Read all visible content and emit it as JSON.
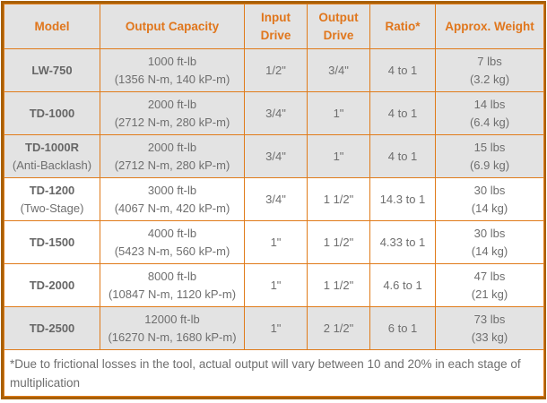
{
  "colors": {
    "accent_orange": "#e07b1a",
    "frame_orange": "#a86006",
    "header_text_orange": "#e0761c",
    "shaded_row_bg": "#e3e3e3",
    "body_text_gray": "#6e6e6e",
    "row_bg_white": "#ffffff"
  },
  "table": {
    "headers": [
      "Model",
      "Output Capacity",
      "Input Drive",
      "Output Drive",
      "Ratio*",
      "Approx. Weight"
    ],
    "rows": [
      {
        "model": [
          "LW-750"
        ],
        "capacity": [
          "1000 ft-lb",
          "(1356 N-m, 140 kP-m)"
        ],
        "input_drive": "1/2\"",
        "output_drive": "3/4\"",
        "ratio": "4 to 1",
        "weight": [
          "7 lbs",
          "(3.2 kg)"
        ],
        "shaded": true
      },
      {
        "model": [
          "TD-1000"
        ],
        "capacity": [
          "2000 ft-lb",
          "(2712 N-m, 280 kP-m)"
        ],
        "input_drive": "3/4\"",
        "output_drive": "1\"",
        "ratio": "4 to 1",
        "weight": [
          "14 lbs",
          "(6.4 kg)"
        ],
        "shaded": true
      },
      {
        "model": [
          "TD-1000R",
          "(Anti-Backlash)"
        ],
        "capacity": [
          "2000 ft-lb",
          "(2712 N-m, 280 kP-m)"
        ],
        "input_drive": "3/4\"",
        "output_drive": "1\"",
        "ratio": "4 to 1",
        "weight": [
          "15 lbs",
          "(6.9 kg)"
        ],
        "shaded": true
      },
      {
        "model": [
          "TD-1200",
          "(Two-Stage)"
        ],
        "capacity": [
          "3000 ft-lb",
          "(4067 N-m, 420 kP-m)"
        ],
        "input_drive": "3/4\"",
        "output_drive": "1 1/2\"",
        "ratio": "14.3 to 1",
        "weight": [
          "30 lbs",
          "(14 kg)"
        ],
        "shaded": false
      },
      {
        "model": [
          "TD-1500"
        ],
        "capacity": [
          "4000 ft-lb",
          "(5423 N-m, 560 kP-m)"
        ],
        "input_drive": "1\"",
        "output_drive": "1 1/2\"",
        "ratio": "4.33 to 1",
        "weight": [
          "30 lbs",
          "(14 kg)"
        ],
        "shaded": false
      },
      {
        "model": [
          "TD-2000"
        ],
        "capacity": [
          "8000 ft-lb",
          "(10847 N-m, 1120 kP-m)"
        ],
        "input_drive": "1\"",
        "output_drive": "1 1/2\"",
        "ratio": "4.6 to 1",
        "weight": [
          "47 lbs",
          "(21 kg)"
        ],
        "shaded": false
      },
      {
        "model": [
          "TD-2500"
        ],
        "capacity": [
          "12000 ft-lb",
          "(16270 N-m, 1680 kP-m)"
        ],
        "input_drive": "1\"",
        "output_drive": "2 1/2\"",
        "ratio": "6 to 1",
        "weight": [
          "73 lbs",
          "(33 kg)"
        ],
        "shaded": true
      }
    ],
    "footnote": "*Due to frictional losses in the tool, actual output will vary between 10 and 20% in each stage of multiplication"
  }
}
